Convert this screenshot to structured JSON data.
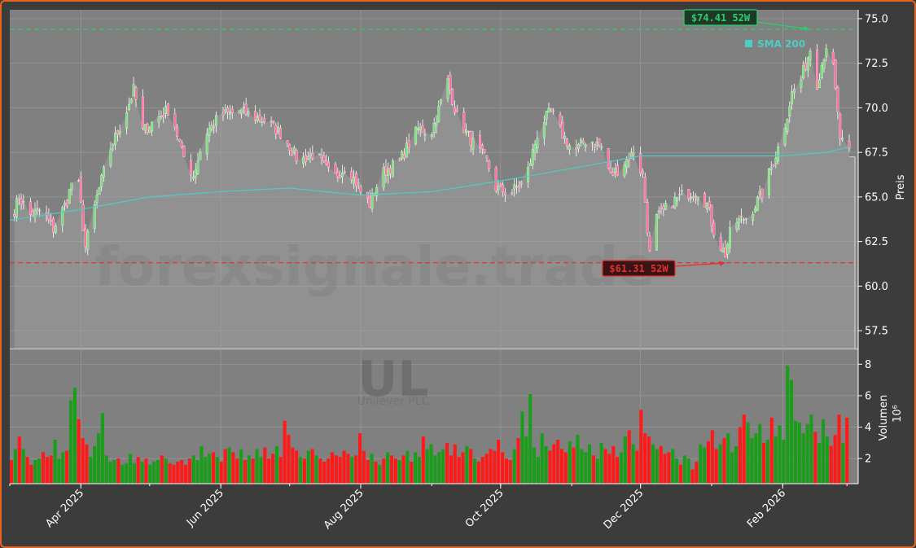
{
  "chart_data": [
    {
      "panel": "price",
      "type": "candlestick",
      "ylabel": "Preis",
      "ylim": [
        56.5,
        75.5
      ],
      "yticks": [
        57.5,
        60.0,
        62.5,
        65.0,
        67.5,
        70.0,
        72.5,
        75.0
      ],
      "ytick_labels": [
        "57.5",
        "60.0",
        "62.5",
        "65.0",
        "67.5",
        "70.0",
        "72.5",
        "75.0"
      ],
      "x_start": "2025-03-01",
      "x_end": "2026-03-02",
      "xticks": [
        "2025-04-01",
        "2025-06-01",
        "2025-08-01",
        "2025-10-01",
        "2025-12-01",
        "2026-02-01"
      ],
      "xtick_labels": [
        "Apr 2025",
        "Jun 2025",
        "Aug 2025",
        "Oct 2025",
        "Dec 2025",
        "Feb 2026"
      ],
      "grid": true,
      "last_close": 67.25,
      "close_keypoints": [
        [
          "2025-03-01",
          63.5
        ],
        [
          "2025-03-05",
          65.0
        ],
        [
          "2025-03-10",
          64.0
        ],
        [
          "2025-03-15",
          64.3
        ],
        [
          "2025-03-20",
          63.2
        ],
        [
          "2025-03-26",
          64.8
        ],
        [
          "2025-03-30",
          66.8
        ],
        [
          "2025-04-03",
          62.2
        ],
        [
          "2025-04-08",
          65.0
        ],
        [
          "2025-04-14",
          67.8
        ],
        [
          "2025-04-20",
          69.5
        ],
        [
          "2025-04-24",
          71.0
        ],
        [
          "2025-04-28",
          68.7
        ],
        [
          "2025-05-05",
          69.5
        ],
        [
          "2025-05-10",
          70.0
        ],
        [
          "2025-05-15",
          67.5
        ],
        [
          "2025-05-20",
          66.2
        ],
        [
          "2025-05-25",
          68.5
        ],
        [
          "2025-06-01",
          69.6
        ],
        [
          "2025-06-10",
          69.8
        ],
        [
          "2025-06-20",
          69.3
        ],
        [
          "2025-06-28",
          68.5
        ],
        [
          "2025-07-05",
          67.0
        ],
        [
          "2025-07-12",
          67.5
        ],
        [
          "2025-07-20",
          66.0
        ],
        [
          "2025-07-26",
          66.8
        ],
        [
          "2025-08-01",
          65.3
        ],
        [
          "2025-08-05",
          64.6
        ],
        [
          "2025-08-10",
          66.3
        ],
        [
          "2025-08-18",
          67.0
        ],
        [
          "2025-08-22",
          68.0
        ],
        [
          "2025-08-26",
          68.8
        ],
        [
          "2025-09-01",
          68.7
        ],
        [
          "2025-09-08",
          71.5
        ],
        [
          "2025-09-12",
          69.5
        ],
        [
          "2025-09-18",
          68.2
        ],
        [
          "2025-09-25",
          67.0
        ],
        [
          "2025-09-29",
          65.5
        ],
        [
          "2025-10-05",
          65.2
        ],
        [
          "2025-10-12",
          66.0
        ],
        [
          "2025-10-18",
          69.0
        ],
        [
          "2025-10-23",
          69.8
        ],
        [
          "2025-10-28",
          68.5
        ],
        [
          "2025-11-02",
          67.5
        ],
        [
          "2025-11-08",
          68.3
        ],
        [
          "2025-11-14",
          67.8
        ],
        [
          "2025-11-18",
          66.2
        ],
        [
          "2025-11-23",
          66.8
        ],
        [
          "2025-11-28",
          67.5
        ],
        [
          "2025-12-02",
          66.2
        ],
        [
          "2025-12-05",
          61.8
        ],
        [
          "2025-12-08",
          63.8
        ],
        [
          "2025-12-14",
          64.6
        ],
        [
          "2025-12-20",
          65.2
        ],
        [
          "2025-12-26",
          65.3
        ],
        [
          "2025-12-30",
          64.6
        ],
        [
          "2026-01-03",
          62.6
        ],
        [
          "2026-01-07",
          61.8
        ],
        [
          "2026-01-10",
          63.5
        ],
        [
          "2026-01-17",
          63.9
        ],
        [
          "2026-01-23",
          65.2
        ],
        [
          "2026-01-28",
          67.0
        ],
        [
          "2026-02-01",
          68.5
        ],
        [
          "2026-02-05",
          70.8
        ],
        [
          "2026-02-09",
          71.6
        ],
        [
          "2026-02-13",
          73.3
        ],
        [
          "2026-02-16",
          71.4
        ],
        [
          "2026-02-20",
          73.5
        ],
        [
          "2026-02-23",
          72.2
        ],
        [
          "2026-02-26",
          68.3
        ],
        [
          "2026-03-02",
          67.4
        ]
      ],
      "sma": {
        "name": "SMA 200",
        "color": "#4ecdc4",
        "keypoints": [
          [
            "2025-03-01",
            63.7
          ],
          [
            "2025-04-01",
            64.3
          ],
          [
            "2025-05-01",
            65.0
          ],
          [
            "2025-06-01",
            65.3
          ],
          [
            "2025-07-01",
            65.5
          ],
          [
            "2025-08-01",
            65.1
          ],
          [
            "2025-09-01",
            65.3
          ],
          [
            "2025-10-01",
            65.9
          ],
          [
            "2025-11-01",
            66.6
          ],
          [
            "2025-12-01",
            67.3
          ],
          [
            "2026-01-01",
            67.3
          ],
          [
            "2026-02-01",
            67.3
          ],
          [
            "2026-02-20",
            67.5
          ],
          [
            "2026-03-02",
            67.8
          ]
        ]
      },
      "annotations": [
        {
          "label": "$74.41 52W",
          "value": 74.41,
          "date": "2026-02-13",
          "color": "#2ecc71",
          "line": "dashed"
        },
        {
          "label": "$61.31 52W",
          "value": 61.31,
          "date": "2026-01-07",
          "color": "#e03030",
          "line": "dashed"
        }
      ],
      "watermark": "forexsignale.trade"
    },
    {
      "panel": "volume",
      "type": "bar",
      "ylabel": "Volumen",
      "yscale_label": "10⁶",
      "ylim": [
        0.4,
        9.0
      ],
      "yticks": [
        2,
        4,
        6,
        8
      ],
      "ytick_labels": [
        "2",
        "4",
        "6",
        "8"
      ],
      "up_color": "#1a9e1a",
      "down_color": "#ff1a1a",
      "values_millions": [
        1.9,
        2.6,
        3.4,
        2.6,
        2.1,
        1.6,
        1.9,
        2.0,
        2.4,
        2.1,
        2.2,
        3.2,
        2.0,
        2.4,
        2.5,
        5.7,
        6.5,
        4.5,
        3.3,
        2.9,
        2.1,
        2.8,
        3.6,
        4.9,
        2.2,
        1.8,
        1.9,
        2.0,
        1.6,
        1.7,
        2.3,
        1.7,
        2.1,
        1.8,
        2.0,
        1.6,
        1.8,
        1.9,
        2.2,
        2.0,
        1.7,
        1.6,
        1.8,
        1.9,
        1.6,
        2.0,
        2.2,
        1.9,
        2.8,
        2.1,
        2.3,
        2.4,
        2.1,
        1.8,
        2.6,
        2.7,
        2.4,
        2.0,
        2.6,
        1.9,
        2.2,
        2.0,
        2.6,
        2.1,
        2.7,
        2.0,
        2.3,
        2.8,
        2.1,
        4.4,
        3.5,
        2.7,
        2.5,
        2.1,
        2.0,
        2.5,
        2.6,
        2.2,
        2.0,
        1.8,
        2.0,
        2.4,
        2.2,
        2.1,
        2.5,
        2.3,
        2.1,
        2.2,
        3.6,
        2.5,
        1.9,
        2.3,
        1.8,
        1.6,
        2.0,
        2.4,
        2.2,
        2.0,
        1.9,
        2.2,
        2.5,
        1.8,
        2.4,
        2.1,
        3.4,
        2.6,
        2.9,
        2.2,
        2.4,
        2.6,
        3.0,
        2.2,
        2.9,
        2.1,
        2.4,
        2.8,
        2.6,
        2.0,
        1.8,
        2.1,
        2.3,
        2.6,
        2.5,
        3.2,
        2.4,
        2.0,
        1.9,
        2.6,
        3.3,
        5.0,
        3.4,
        6.1,
        2.7,
        2.1,
        3.6,
        2.8,
        2.5,
        2.9,
        3.2,
        2.6,
        2.4,
        3.1,
        2.7,
        3.5,
        2.6,
        2.4,
        2.9,
        2.2,
        2.0,
        3.0,
        2.6,
        2.3,
        2.8,
        2.1,
        2.4,
        3.4,
        3.8,
        2.9,
        2.5,
        5.1,
        3.6,
        3.4,
        2.9,
        2.6,
        2.8,
        2.3,
        2.4,
        2.6,
        2.0,
        1.6,
        2.2,
        2.0,
        1.3,
        1.8,
        2.9,
        2.7,
        3.1,
        3.8,
        2.6,
        2.9,
        3.3,
        3.6,
        2.4,
        2.8,
        4.0,
        4.8,
        4.3,
        3.3,
        3.6,
        4.2,
        3.0,
        3.2,
        4.6,
        3.4,
        4.1,
        3.2,
        7.9,
        7.0,
        4.4,
        4.3,
        3.6,
        4.2,
        4.8,
        3.7,
        3.0,
        4.5,
        3.4,
        2.8,
        3.5,
        4.8,
        3.0,
        4.6
      ],
      "watermark": "UL",
      "watermark_subtitle": "Unilever PLC"
    }
  ]
}
